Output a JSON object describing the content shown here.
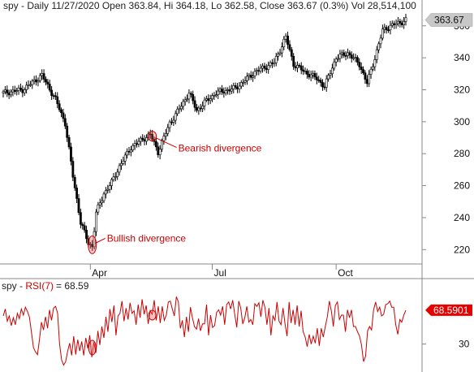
{
  "chart_data": [
    {
      "panel": "price",
      "type": "candlestick",
      "header": "spy - Daily 11/27/2020 Open 363.84, Hi 364.18, Lo 362.58, Close 363.67 (0.3%) Vol 28,514,100",
      "y_ticks": [
        "360",
        "340",
        "320",
        "300",
        "280",
        "260",
        "240",
        "220"
      ],
      "y_tick_values": [
        360,
        340,
        320,
        300,
        280,
        260,
        240,
        220
      ],
      "ylim": [
        211,
        367
      ],
      "x_ticks": [
        {
          "label": "Apr",
          "index": 45
        },
        {
          "label": "Jul",
          "index": 108
        },
        {
          "label": "Oct",
          "index": 172
        }
      ],
      "last_price_label": "363.67",
      "last_price": 363.67,
      "annotations": [
        {
          "text": "Bearish divergence",
          "index": 77,
          "value": 291
        },
        {
          "text": "Bullish divergence",
          "index": 46,
          "value": 223
        }
      ],
      "series": [
        {
          "label_points": [
            [
              0,
              318
            ],
            [
              10,
              320
            ],
            [
              20,
              329
            ],
            [
              27,
              314
            ],
            [
              32,
              299
            ],
            [
              36,
              266
            ],
            [
              40,
              237
            ],
            [
              44,
              224
            ],
            [
              46,
              222
            ],
            [
              48,
              243
            ],
            [
              52,
              255
            ],
            [
              56,
              262
            ],
            [
              60,
              272
            ],
            [
              66,
              284
            ],
            [
              72,
              289
            ],
            [
              76,
              292
            ],
            [
              80,
              281
            ],
            [
              86,
              299
            ],
            [
              92,
              310
            ],
            [
              96,
              318
            ],
            [
              100,
              307
            ],
            [
              104,
              312
            ],
            [
              110,
              318
            ],
            [
              120,
              321
            ],
            [
              130,
              331
            ],
            [
              140,
              337
            ],
            [
              146,
              353
            ],
            [
              150,
              336
            ],
            [
              156,
              331
            ],
            [
              162,
              327
            ],
            [
              166,
              322
            ],
            [
              172,
              340
            ],
            [
              178,
              343
            ],
            [
              184,
              336
            ],
            [
              188,
              324
            ],
            [
              192,
              340
            ],
            [
              196,
              357
            ],
            [
              200,
              360
            ],
            [
              205,
              362
            ],
            [
              208,
              363.67
            ]
          ]
        }
      ],
      "last_index": 208,
      "color": "#000000"
    },
    {
      "panel": "rsi",
      "type": "line",
      "legend_prefix": "spy - ",
      "legend_name": "RSI(7)",
      "legend_value_text": "= 68.59",
      "y_ticks": [
        "30"
      ],
      "y_tick_values": [
        30
      ],
      "ylim": [
        0,
        100
      ],
      "last_value_label": "68.5901",
      "last_value": 68.59,
      "color": "#cc0000",
      "values": [
        62,
        70,
        56,
        62,
        51,
        60,
        52,
        65,
        59,
        70,
        63,
        72,
        67,
        61,
        44,
        26,
        21,
        18,
        35,
        55,
        46,
        61,
        48,
        69,
        57,
        71,
        73,
        65,
        30,
        12,
        6,
        10,
        22,
        31,
        17,
        39,
        18,
        35,
        22,
        33,
        17,
        37,
        25,
        40,
        15,
        32,
        20,
        45,
        29,
        50,
        37,
        61,
        44,
        70,
        55,
        74,
        40,
        62,
        65,
        79,
        56,
        71,
        58,
        77,
        65,
        68,
        52,
        75,
        60,
        81,
        64,
        74,
        53,
        68,
        64,
        80,
        57,
        73,
        54,
        73,
        57,
        63,
        78,
        79,
        70,
        62,
        84,
        78,
        48,
        57,
        38,
        61,
        44,
        72,
        60,
        50,
        47,
        59,
        45,
        53,
        53,
        75,
        40,
        63,
        49,
        51,
        66,
        69,
        63,
        73,
        52,
        75,
        78,
        70,
        80,
        64,
        49,
        79,
        71,
        53,
        60,
        73,
        55,
        58,
        52,
        76,
        73,
        77,
        61,
        80,
        72,
        52,
        71,
        40,
        62,
        57,
        78,
        56,
        52,
        71,
        53,
        39,
        78,
        54,
        69,
        52,
        74,
        50,
        68,
        44,
        38,
        27,
        41,
        30,
        39,
        31,
        48,
        28,
        48,
        38,
        50,
        61,
        79,
        68,
        50,
        74,
        78,
        58,
        63,
        63,
        44,
        69,
        60,
        69,
        50,
        50,
        44,
        39,
        29,
        10,
        16,
        45,
        50,
        46,
        69,
        78,
        67,
        72,
        62,
        64,
        75,
        76,
        79,
        72,
        72,
        52,
        41,
        58,
        55,
        63,
        68.59
      ]
    }
  ]
}
